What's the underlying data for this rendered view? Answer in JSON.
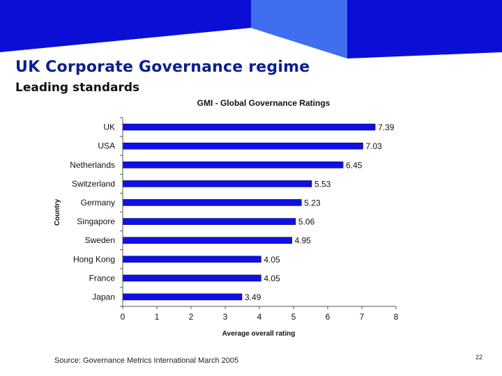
{
  "slide": {
    "title": "UK Corporate Governance regime",
    "subtitle": "Leading standards",
    "source": "Source: Governance Metrics International March 2005",
    "page_number": "22"
  },
  "colors": {
    "banner_blue": "#0b0fd6",
    "banner_light_blue": "#3f6ef0",
    "title_blue": "#0b1f8f",
    "bar_fill": "#1010e6"
  },
  "chart_data": {
    "type": "bar",
    "orientation": "horizontal",
    "title": "GMI - Global Governance Ratings",
    "xlabel": "Average overall rating",
    "ylabel": "Country",
    "categories": [
      "UK",
      "USA",
      "Netherlands",
      "Switzerland",
      "Germany",
      "Singapore",
      "Sweden",
      "Hong Kong",
      "France",
      "Japan"
    ],
    "values": [
      7.39,
      7.03,
      6.45,
      5.53,
      5.23,
      5.06,
      4.95,
      4.05,
      4.05,
      3.49
    ],
    "value_labels": [
      "7.39",
      "7.03",
      "6.45",
      "5.53",
      "5.23",
      "5.06",
      "4.95",
      "4.05",
      "4.05",
      "3.49"
    ],
    "xlim": [
      0,
      8
    ],
    "xticks": [
      "0",
      "1",
      "2",
      "3",
      "4",
      "5",
      "6",
      "7",
      "8"
    ]
  }
}
